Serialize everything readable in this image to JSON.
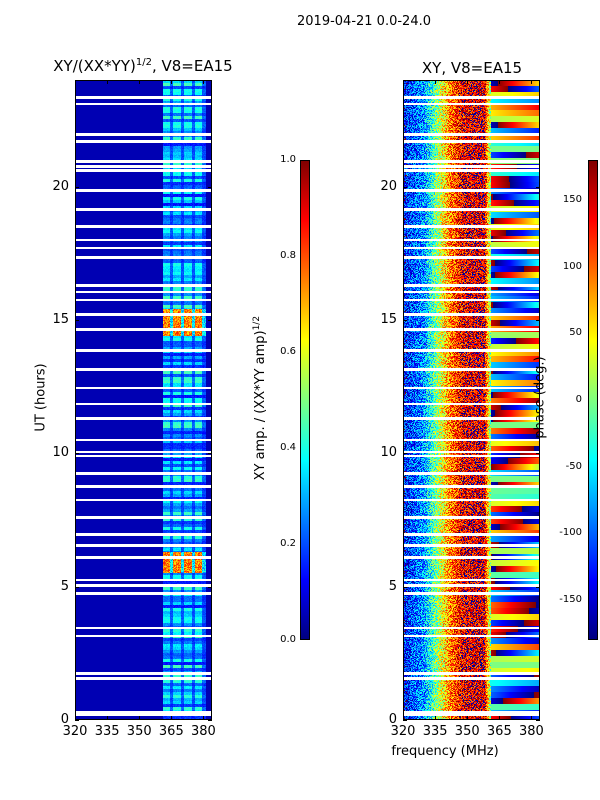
{
  "suptitle": "2019-04-21 0.0-24.0",
  "chart_data": [
    {
      "type": "heatmap",
      "title_main": "XY/(XX*YY)",
      "title_sup": "1/2",
      "title_tail": ", V8=EA15",
      "xlabel": "",
      "ylabel": "UT (hours)",
      "xlim": [
        320,
        384
      ],
      "ylim": [
        0,
        24
      ],
      "xticks": [
        320,
        335,
        350,
        365,
        380
      ],
      "yticks": [
        0,
        5,
        10,
        15,
        20
      ],
      "colorbar": {
        "label_main": "XY amp. / (XX*YY amp)",
        "label_sup": "1/2",
        "range": [
          0.0,
          1.0
        ],
        "ticks": [
          "0.0",
          "0.2",
          "0.4",
          "0.6",
          "0.8",
          "1.0"
        ],
        "colormap": "jet"
      },
      "background_value": 0.05,
      "active_channel_range_mhz": [
        361,
        381
      ],
      "active_channel_value": 0.3,
      "bright_intervals_hours": [
        [
          14.4,
          15.4
        ],
        [
          5.5,
          6.3
        ]
      ],
      "bright_value": 0.75
    },
    {
      "type": "heatmap",
      "title": "XY, V8=EA15",
      "xlabel": "frequency (MHz)",
      "xlim": [
        320,
        384
      ],
      "ylim": [
        0,
        24
      ],
      "xticks": [
        320,
        335,
        350,
        365,
        380
      ],
      "yticks": [
        0,
        5,
        10,
        15,
        20
      ],
      "colorbar": {
        "label": "phase (deg.)",
        "range": [
          -180,
          180
        ],
        "ticks": [
          150,
          100,
          50,
          0,
          -50,
          -100,
          -150
        ],
        "colormap": "jet"
      },
      "phase_profile_deg": [
        [
          320,
          -130
        ],
        [
          330,
          -80
        ],
        [
          337,
          20
        ],
        [
          342,
          90
        ],
        [
          348,
          140
        ],
        [
          358,
          150
        ],
        [
          361,
          0
        ],
        [
          384,
          40
        ]
      ]
    }
  ],
  "flagged_hours": [
    23.35,
    23.1,
    21.95,
    21.7,
    20.95,
    20.75,
    20.6,
    19.85,
    19.15,
    18.5,
    18.0,
    17.7,
    17.35,
    16.3,
    16.05,
    15.75,
    15.2,
    14.65,
    13.85,
    13.15,
    12.45,
    11.85,
    11.3,
    10.5,
    10.05,
    9.9,
    9.25,
    8.75,
    8.25,
    7.6,
    6.95,
    6.55,
    6.1,
    5.25,
    5.05,
    4.75,
    3.45,
    3.15,
    1.75,
    1.55,
    0.3,
    0.2
  ]
}
